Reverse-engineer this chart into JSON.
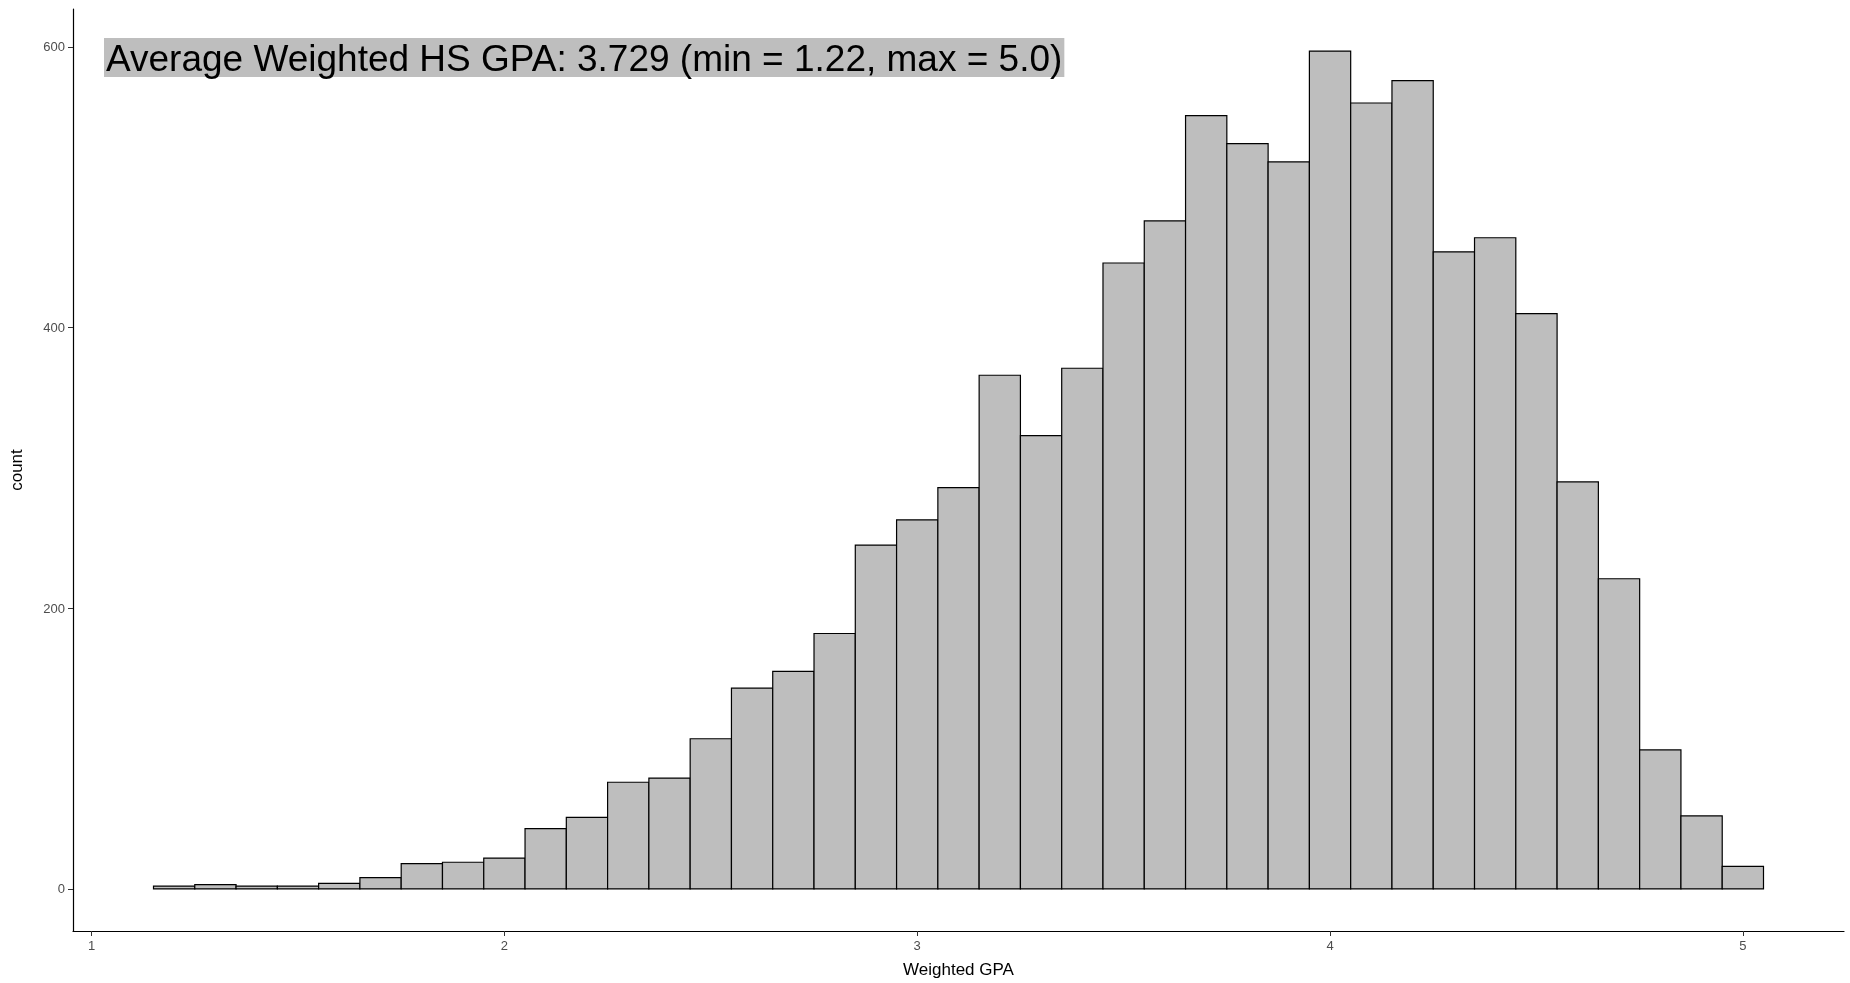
{
  "chart_data": {
    "type": "histogram",
    "xlabel": "Weighted GPA",
    "ylabel": "count",
    "annotations": [
      "Average Weighted HS GPA: 3.729 (min = 1.22, max = 5.0)"
    ],
    "bins": [
      1.15,
      1.25,
      1.35,
      1.45,
      1.55,
      1.65,
      1.75,
      1.85,
      1.95,
      2.05,
      2.15,
      2.25,
      2.35,
      2.45,
      2.55,
      2.65,
      2.75,
      2.85,
      2.95,
      3.05,
      3.15,
      3.25,
      3.35,
      3.45,
      3.55,
      3.65,
      3.75,
      3.85,
      3.95,
      4.05,
      4.15,
      4.25,
      4.35,
      4.45,
      4.55,
      4.65,
      4.75,
      4.85,
      4.95,
      5.05
    ],
    "values": [
      2,
      3,
      2,
      2,
      4,
      8,
      18,
      19,
      22,
      43,
      51,
      76,
      79,
      107,
      143,
      155,
      182,
      245,
      263,
      286,
      366,
      323,
      371,
      446,
      476,
      551,
      531,
      518,
      597,
      560,
      576,
      454,
      464,
      410,
      290,
      221,
      99,
      52,
      16
    ],
    "color": "#bebebe",
    "xlim": [
      0.955,
      5.245
    ],
    "xticks": [
      1,
      2,
      3,
      4,
      5
    ],
    "ylim": [
      -30,
      627
    ],
    "yticks": [
      0,
      200,
      400,
      600
    ],
    "grid": false
  }
}
